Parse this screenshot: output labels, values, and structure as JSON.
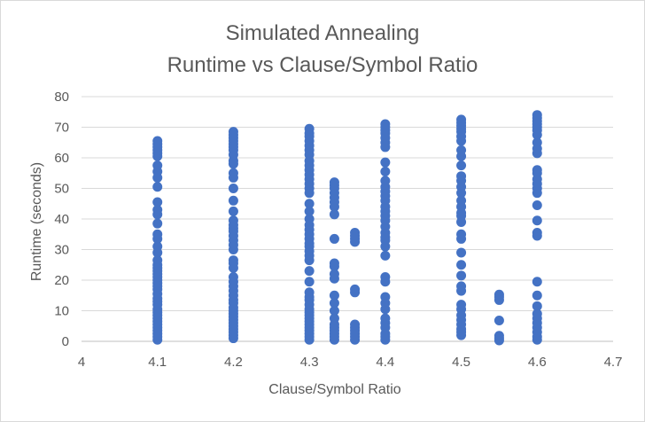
{
  "chart_data": {
    "type": "scatter",
    "title": "Simulated Annealing",
    "subtitle": "Runtime vs Clause/Symbol Ratio",
    "xlabel": "Clause/Symbol Ratio",
    "ylabel": "Runtime (seconds)",
    "xlim": [
      4,
      4.7
    ],
    "ylim": [
      0,
      80
    ],
    "x_ticks": [
      "4",
      "4.1",
      "4.2",
      "4.3",
      "4.4",
      "4.5",
      "4.6",
      "4.7"
    ],
    "y_ticks": [
      "0",
      "10",
      "20",
      "30",
      "40",
      "50",
      "60",
      "70",
      "80"
    ],
    "grid": "horizontal",
    "legend": "none",
    "marker_color": "#4472c4",
    "series": [
      {
        "points": [
          [
            4.1,
            0.5
          ],
          [
            4.1,
            1.5
          ],
          [
            4.1,
            2.5
          ],
          [
            4.1,
            3.5
          ],
          [
            4.1,
            4.5
          ],
          [
            4.1,
            5.5
          ],
          [
            4.1,
            6.5
          ],
          [
            4.1,
            7.5
          ],
          [
            4.1,
            8.5
          ],
          [
            4.1,
            9.5
          ],
          [
            4.1,
            10.5
          ],
          [
            4.1,
            12
          ],
          [
            4.1,
            13
          ],
          [
            4.1,
            14
          ],
          [
            4.1,
            15.5
          ],
          [
            4.1,
            17
          ],
          [
            4.1,
            18
          ],
          [
            4.1,
            19
          ],
          [
            4.1,
            20
          ],
          [
            4.1,
            21
          ],
          [
            4.1,
            22
          ],
          [
            4.1,
            23
          ],
          [
            4.1,
            24
          ],
          [
            4.1,
            25
          ],
          [
            4.1,
            26.5
          ],
          [
            4.1,
            29
          ],
          [
            4.1,
            31
          ],
          [
            4.1,
            33.5
          ],
          [
            4.1,
            35
          ],
          [
            4.1,
            38.5
          ],
          [
            4.1,
            41.5
          ],
          [
            4.1,
            43
          ],
          [
            4.1,
            45.5
          ],
          [
            4.1,
            50.5
          ],
          [
            4.1,
            53.5
          ],
          [
            4.1,
            55.5
          ],
          [
            4.1,
            57.5
          ],
          [
            4.1,
            60.5
          ],
          [
            4.1,
            61.5
          ],
          [
            4.1,
            62.5
          ],
          [
            4.1,
            63.5
          ],
          [
            4.1,
            64.5
          ],
          [
            4.1,
            65.5
          ],
          [
            4.2,
            1
          ],
          [
            4.2,
            2
          ],
          [
            4.2,
            3
          ],
          [
            4.2,
            4
          ],
          [
            4.2,
            5
          ],
          [
            4.2,
            6
          ],
          [
            4.2,
            7
          ],
          [
            4.2,
            8
          ],
          [
            4.2,
            9
          ],
          [
            4.2,
            10
          ],
          [
            4.2,
            11
          ],
          [
            4.2,
            12.5
          ],
          [
            4.2,
            13.5
          ],
          [
            4.2,
            15
          ],
          [
            4.2,
            16.5
          ],
          [
            4.2,
            18
          ],
          [
            4.2,
            19.5
          ],
          [
            4.2,
            21
          ],
          [
            4.2,
            24
          ],
          [
            4.2,
            25.5
          ],
          [
            4.2,
            26.5
          ],
          [
            4.2,
            30
          ],
          [
            4.2,
            31.5
          ],
          [
            4.2,
            33
          ],
          [
            4.2,
            34.5
          ],
          [
            4.2,
            36
          ],
          [
            4.2,
            37
          ],
          [
            4.2,
            38
          ],
          [
            4.2,
            39.5
          ],
          [
            4.2,
            42.5
          ],
          [
            4.2,
            46
          ],
          [
            4.2,
            50
          ],
          [
            4.2,
            53.5
          ],
          [
            4.2,
            55
          ],
          [
            4.2,
            58
          ],
          [
            4.2,
            59
          ],
          [
            4.2,
            61
          ],
          [
            4.2,
            62.5
          ],
          [
            4.2,
            63.5
          ],
          [
            4.2,
            64.5
          ],
          [
            4.2,
            65.5
          ],
          [
            4.2,
            66.5
          ],
          [
            4.2,
            67.5
          ],
          [
            4.2,
            68.5
          ],
          [
            4.3,
            0.5
          ],
          [
            4.3,
            1.5
          ],
          [
            4.3,
            2.5
          ],
          [
            4.3,
            3.5
          ],
          [
            4.3,
            4.5
          ],
          [
            4.3,
            5.5
          ],
          [
            4.3,
            6.5
          ],
          [
            4.3,
            7.5
          ],
          [
            4.3,
            8.5
          ],
          [
            4.3,
            9.5
          ],
          [
            4.3,
            10.5
          ],
          [
            4.3,
            12
          ],
          [
            4.3,
            13.5
          ],
          [
            4.3,
            14.5
          ],
          [
            4.3,
            16
          ],
          [
            4.3,
            19.5
          ],
          [
            4.3,
            23
          ],
          [
            4.3,
            26.5
          ],
          [
            4.3,
            28
          ],
          [
            4.3,
            29.5
          ],
          [
            4.3,
            31
          ],
          [
            4.3,
            32
          ],
          [
            4.3,
            33.5
          ],
          [
            4.3,
            35
          ],
          [
            4.3,
            36.5
          ],
          [
            4.3,
            38
          ],
          [
            4.3,
            40
          ],
          [
            4.3,
            42.5
          ],
          [
            4.3,
            45
          ],
          [
            4.3,
            48.5
          ],
          [
            4.3,
            50
          ],
          [
            4.3,
            51.5
          ],
          [
            4.3,
            53
          ],
          [
            4.3,
            54.5
          ],
          [
            4.3,
            56
          ],
          [
            4.3,
            57.5
          ],
          [
            4.3,
            59
          ],
          [
            4.3,
            61
          ],
          [
            4.3,
            62.5
          ],
          [
            4.3,
            64
          ],
          [
            4.3,
            65.5
          ],
          [
            4.3,
            67
          ],
          [
            4.3,
            68
          ],
          [
            4.3,
            69.5
          ],
          [
            4.333,
            0.5
          ],
          [
            4.333,
            1.5
          ],
          [
            4.333,
            2.5
          ],
          [
            4.333,
            3.5
          ],
          [
            4.333,
            4.5
          ],
          [
            4.333,
            5.5
          ],
          [
            4.333,
            7.5
          ],
          [
            4.333,
            10
          ],
          [
            4.333,
            12.5
          ],
          [
            4.333,
            15
          ],
          [
            4.333,
            20.5
          ],
          [
            4.333,
            22
          ],
          [
            4.333,
            24.5
          ],
          [
            4.333,
            25.5
          ],
          [
            4.333,
            33.5
          ],
          [
            4.333,
            41.5
          ],
          [
            4.333,
            44
          ],
          [
            4.333,
            45.5
          ],
          [
            4.333,
            47
          ],
          [
            4.333,
            48.5
          ],
          [
            4.333,
            50
          ],
          [
            4.333,
            51
          ],
          [
            4.333,
            52
          ],
          [
            4.36,
            0.5
          ],
          [
            4.36,
            1.5
          ],
          [
            4.36,
            2.5
          ],
          [
            4.36,
            3.5
          ],
          [
            4.36,
            4.5
          ],
          [
            4.36,
            5.5
          ],
          [
            4.36,
            16
          ],
          [
            4.36,
            17
          ],
          [
            4.36,
            32.5
          ],
          [
            4.36,
            33.5
          ],
          [
            4.36,
            34.5
          ],
          [
            4.36,
            35.5
          ],
          [
            4.4,
            0.5
          ],
          [
            4.4,
            1.5
          ],
          [
            4.4,
            2.5
          ],
          [
            4.4,
            4.5
          ],
          [
            4.4,
            6
          ],
          [
            4.4,
            7.5
          ],
          [
            4.4,
            10.5
          ],
          [
            4.4,
            12.5
          ],
          [
            4.4,
            14.5
          ],
          [
            4.4,
            19.5
          ],
          [
            4.4,
            21
          ],
          [
            4.4,
            28
          ],
          [
            4.4,
            31
          ],
          [
            4.4,
            33
          ],
          [
            4.4,
            34
          ],
          [
            4.4,
            35.5
          ],
          [
            4.4,
            37.5
          ],
          [
            4.4,
            39.5
          ],
          [
            4.4,
            41
          ],
          [
            4.4,
            42.5
          ],
          [
            4.4,
            44
          ],
          [
            4.4,
            46
          ],
          [
            4.4,
            47.5
          ],
          [
            4.4,
            49
          ],
          [
            4.4,
            50.5
          ],
          [
            4.4,
            52.5
          ],
          [
            4.4,
            55.5
          ],
          [
            4.4,
            58.5
          ],
          [
            4.4,
            63.5
          ],
          [
            4.4,
            65
          ],
          [
            4.4,
            66.5
          ],
          [
            4.4,
            68
          ],
          [
            4.4,
            69
          ],
          [
            4.4,
            70
          ],
          [
            4.4,
            71
          ],
          [
            4.5,
            2
          ],
          [
            4.5,
            3
          ],
          [
            4.5,
            4
          ],
          [
            4.5,
            5.5
          ],
          [
            4.5,
            7
          ],
          [
            4.5,
            8.5
          ],
          [
            4.5,
            10.5
          ],
          [
            4.5,
            12
          ],
          [
            4.5,
            16.5
          ],
          [
            4.5,
            18
          ],
          [
            4.5,
            21.5
          ],
          [
            4.5,
            25
          ],
          [
            4.5,
            29
          ],
          [
            4.5,
            33.5
          ],
          [
            4.5,
            35
          ],
          [
            4.5,
            39
          ],
          [
            4.5,
            41
          ],
          [
            4.5,
            42
          ],
          [
            4.5,
            44
          ],
          [
            4.5,
            46
          ],
          [
            4.5,
            48.5
          ],
          [
            4.5,
            50.5
          ],
          [
            4.5,
            52.5
          ],
          [
            4.5,
            54
          ],
          [
            4.5,
            57.5
          ],
          [
            4.5,
            60.5
          ],
          [
            4.5,
            62.5
          ],
          [
            4.5,
            65.5
          ],
          [
            4.5,
            67
          ],
          [
            4.5,
            68.5
          ],
          [
            4.5,
            69.5
          ],
          [
            4.5,
            70.5
          ],
          [
            4.5,
            71.5
          ],
          [
            4.5,
            72.5
          ],
          [
            4.55,
            0.3
          ],
          [
            4.55,
            1
          ],
          [
            4.55,
            1.8
          ],
          [
            4.55,
            6.8
          ],
          [
            4.55,
            13.5
          ],
          [
            4.55,
            14.5
          ],
          [
            4.55,
            15.3
          ],
          [
            4.6,
            0.5
          ],
          [
            4.6,
            1.5
          ],
          [
            4.6,
            3
          ],
          [
            4.6,
            4.5
          ],
          [
            4.6,
            6
          ],
          [
            4.6,
            7.5
          ],
          [
            4.6,
            9
          ],
          [
            4.6,
            11.5
          ],
          [
            4.6,
            15
          ],
          [
            4.6,
            19.5
          ],
          [
            4.6,
            34.5
          ],
          [
            4.6,
            35.5
          ],
          [
            4.6,
            39.5
          ],
          [
            4.6,
            44.5
          ],
          [
            4.6,
            48.5
          ],
          [
            4.6,
            50
          ],
          [
            4.6,
            51.5
          ],
          [
            4.6,
            53
          ],
          [
            4.6,
            55
          ],
          [
            4.6,
            56
          ],
          [
            4.6,
            61.5
          ],
          [
            4.6,
            63
          ],
          [
            4.6,
            65
          ],
          [
            4.6,
            67.5
          ],
          [
            4.6,
            69
          ],
          [
            4.6,
            70
          ],
          [
            4.6,
            71
          ],
          [
            4.6,
            72
          ],
          [
            4.6,
            73
          ],
          [
            4.6,
            74
          ]
        ]
      }
    ]
  }
}
